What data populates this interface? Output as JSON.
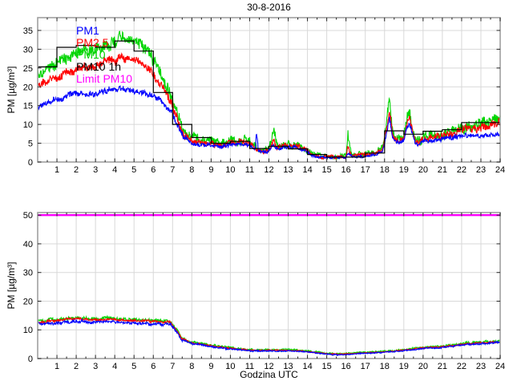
{
  "chart_data": [
    {
      "type": "line",
      "title": "30-8-2016",
      "ylabel": "PM [µg/m³]",
      "xlabel": "",
      "xlim": [
        0,
        24
      ],
      "ylim": [
        0,
        38.4
      ],
      "xticks": [
        1,
        2,
        3,
        4,
        5,
        6,
        7,
        8,
        9,
        10,
        11,
        12,
        13,
        14,
        15,
        16,
        17,
        18,
        19,
        20,
        21,
        22,
        23,
        24
      ],
      "yticks": [
        0,
        5,
        10,
        15,
        20,
        25,
        30,
        35
      ],
      "grid": true,
      "legend_position": "top-left-inside",
      "legend": [
        {
          "label": "PM1",
          "color": "#0000ff"
        },
        {
          "label": "PM2.5",
          "color": "#ff0000"
        },
        {
          "label": "PM10",
          "color": "#00d500"
        },
        {
          "label": "PM10 1h",
          "color": "#000000"
        },
        {
          "label": "Limit PM10",
          "color": "#ff00ff"
        }
      ],
      "series": [
        {
          "name": "PM10",
          "color": "#00d500",
          "noise": 1.4,
          "x": [
            0,
            0.5,
            1,
            1.5,
            2,
            2.5,
            3,
            3.5,
            4,
            4.3,
            4.6,
            5,
            5.5,
            6,
            6.3,
            6.7,
            7,
            7.3,
            7.6,
            8,
            8.5,
            9,
            9.5,
            10,
            10.5,
            11,
            11.3,
            11.6,
            12,
            12.25,
            12.4,
            13,
            13.5,
            14,
            14.3,
            15,
            15.5,
            16,
            16.1,
            16.3,
            17,
            17.5,
            17.9,
            18.1,
            18.25,
            18.4,
            18.6,
            18.8,
            19,
            19.15,
            19.3,
            19.45,
            19.6,
            19.8,
            20,
            20.5,
            21,
            21.5,
            22,
            22.3,
            22.6,
            23,
            23.3,
            23.6,
            24
          ],
          "y": [
            24,
            25,
            26.5,
            27.5,
            29,
            29.5,
            30,
            31,
            32,
            33.5,
            33,
            32.5,
            30.5,
            27,
            24,
            20,
            17,
            12,
            8,
            6.5,
            5.5,
            5.5,
            5,
            5.5,
            6,
            5.5,
            4,
            3,
            3.5,
            9,
            4.5,
            4.5,
            4.5,
            3.5,
            2,
            1.5,
            1.5,
            1.5,
            8,
            2,
            2,
            2.5,
            4,
            10,
            16,
            9,
            6,
            6.5,
            7,
            11,
            13.5,
            9,
            6,
            5.5,
            6.5,
            7,
            7.5,
            8.5,
            9,
            10,
            9.5,
            10,
            11,
            11.5,
            12
          ]
        },
        {
          "name": "PM2.5",
          "color": "#ff0000",
          "noise": 1.0,
          "x": [
            0,
            0.5,
            1,
            1.5,
            2,
            2.5,
            3,
            3.5,
            4,
            4.3,
            4.6,
            5,
            5.5,
            6,
            6.3,
            6.7,
            7,
            7.3,
            7.6,
            8,
            8.5,
            9,
            9.5,
            10,
            10.5,
            11,
            11.3,
            11.6,
            12,
            12.25,
            12.4,
            13,
            13.5,
            14,
            14.3,
            15,
            15.5,
            16,
            16.1,
            16.3,
            17,
            17.5,
            17.9,
            18.1,
            18.25,
            18.4,
            18.6,
            18.8,
            19,
            19.15,
            19.3,
            19.45,
            19.6,
            19.8,
            20,
            20.5,
            21,
            21.5,
            22,
            22.3,
            22.6,
            23,
            23.3,
            23.6,
            24
          ],
          "y": [
            20.5,
            21.5,
            22.5,
            23.5,
            24.5,
            25,
            25.5,
            26.5,
            27,
            28,
            27.8,
            27.5,
            26,
            23.5,
            21,
            18,
            15,
            10.5,
            7,
            5.5,
            5,
            5,
            4.5,
            5,
            5.5,
            5,
            3.6,
            2.8,
            3.2,
            6,
            4,
            4.2,
            4.2,
            3.2,
            1.8,
            1.3,
            1.3,
            1.3,
            4,
            1.7,
            1.8,
            2.2,
            3.5,
            9,
            14,
            8,
            5.5,
            6,
            6.5,
            10,
            12,
            8,
            5.5,
            5,
            6,
            6.5,
            7,
            7.5,
            8.5,
            9,
            8.8,
            9,
            9.8,
            10.2,
            10.5
          ]
        },
        {
          "name": "PM1",
          "color": "#0000ff",
          "noise": 0.7,
          "x": [
            0,
            0.5,
            1,
            1.5,
            2,
            2.5,
            3,
            3.5,
            4,
            4.3,
            4.6,
            5,
            5.5,
            6,
            6.3,
            6.7,
            7,
            7.3,
            7.6,
            8,
            8.5,
            9,
            9.5,
            10,
            10.5,
            11,
            11.3,
            11.35,
            11.45,
            11.6,
            12,
            12.25,
            12.4,
            13,
            13.5,
            14,
            14.3,
            15,
            15.5,
            16,
            16.1,
            16.3,
            17,
            17.5,
            17.9,
            18.1,
            18.25,
            18.4,
            18.6,
            18.8,
            19,
            19.15,
            19.3,
            19.45,
            19.6,
            19.8,
            20,
            20.5,
            21,
            21.5,
            22,
            22.3,
            22.6,
            23,
            23.3,
            23.6,
            24
          ],
          "y": [
            15,
            16,
            16.5,
            17.5,
            18.5,
            18,
            18,
            19,
            19.5,
            19.5,
            19.5,
            19,
            18.5,
            17.5,
            16.5,
            14.5,
            13,
            9,
            6.5,
            5,
            4.5,
            4.5,
            4,
            4.5,
            5,
            4.5,
            3.3,
            8.5,
            3,
            2.5,
            3,
            4.5,
            3.6,
            3.8,
            3.8,
            2.8,
            1.5,
            1.1,
            1.1,
            1.1,
            2.5,
            1.4,
            1.5,
            1.9,
            3,
            7.5,
            12,
            7,
            5,
            5.5,
            6,
            9,
            10.5,
            7,
            5,
            4.5,
            5.5,
            5.8,
            6,
            6.5,
            7,
            7.2,
            7,
            7,
            7.3,
            7.5,
            7.5
          ]
        }
      ],
      "step_series": {
        "name": "PM10 1h",
        "color": "#000000",
        "hour_values": [
          25.3,
          30.5,
          31,
          30.5,
          32.2,
          29.5,
          18.5,
          10,
          6.5,
          5,
          5.5,
          3.6,
          4.2,
          3.5,
          2,
          1.3,
          1.3,
          2.4,
          8.3,
          7.4,
          8.2,
          8.6,
          10.5,
          10.5
        ]
      }
    },
    {
      "type": "line",
      "title": "",
      "ylabel": "PM [µg/m³]",
      "xlabel": "Godzina UTC",
      "xlim": [
        0,
        24
      ],
      "ylim": [
        0,
        50.9
      ],
      "xticks": [
        1,
        2,
        3,
        4,
        5,
        6,
        7,
        8,
        9,
        10,
        11,
        12,
        13,
        14,
        15,
        16,
        17,
        18,
        19,
        20,
        21,
        22,
        23,
        24
      ],
      "yticks": [
        0,
        10,
        20,
        30,
        40,
        50
      ],
      "grid": true,
      "series": [
        {
          "name": "PM10",
          "color": "#00d500",
          "noise": 0.5,
          "x": [
            0,
            0.5,
            1,
            1.5,
            2,
            2.5,
            3,
            3.5,
            4,
            4.5,
            5,
            5.5,
            6,
            6.5,
            6.9,
            7.2,
            7.5,
            8,
            8.5,
            9,
            9.5,
            10,
            10.5,
            11,
            11.5,
            12,
            12.5,
            13,
            13.5,
            14,
            14.5,
            15,
            15.5,
            16,
            16.5,
            17,
            17.5,
            18,
            18.5,
            19,
            19.5,
            20,
            20.5,
            21,
            21.5,
            22,
            22.5,
            23,
            23.5,
            24
          ],
          "y": [
            13.2,
            13.4,
            13.6,
            14,
            14.3,
            14.1,
            13.8,
            14,
            14.2,
            13.8,
            13.5,
            13.6,
            13.3,
            13.2,
            13,
            10,
            7,
            5.7,
            5.2,
            4.6,
            4.2,
            3.8,
            3.4,
            3.1,
            3,
            3.1,
            3,
            3.1,
            2.9,
            2.6,
            2.3,
            1.9,
            1.7,
            1.8,
            2,
            2.2,
            2.3,
            2.5,
            2.8,
            3.2,
            3.5,
            3.9,
            4.1,
            4.3,
            4.6,
            5.2,
            5.5,
            5.7,
            5.9,
            6
          ]
        },
        {
          "name": "PM2.5",
          "color": "#ff0000",
          "noise": 0.35,
          "x": [
            0,
            0.5,
            1,
            1.5,
            2,
            2.5,
            3,
            3.5,
            4,
            4.5,
            5,
            5.5,
            6,
            6.5,
            6.9,
            7.2,
            7.5,
            8,
            8.5,
            9,
            9.5,
            10,
            10.5,
            11,
            11.5,
            12,
            12.5,
            13,
            13.5,
            14,
            14.5,
            15,
            15.5,
            16,
            16.5,
            17,
            17.5,
            18,
            18.5,
            19,
            19.5,
            20,
            20.5,
            21,
            21.5,
            22,
            22.5,
            23,
            23.5,
            24
          ],
          "y": [
            12.8,
            13,
            13.2,
            13.6,
            13.9,
            13.7,
            13.4,
            13.6,
            13.8,
            13.4,
            13.1,
            13.2,
            12.9,
            12.8,
            12.6,
            9.7,
            6.8,
            5.5,
            5,
            4.4,
            4,
            3.6,
            3.2,
            2.9,
            2.8,
            2.9,
            2.8,
            2.9,
            2.7,
            2.4,
            2.1,
            1.7,
            1.5,
            1.6,
            1.8,
            2,
            2.1,
            2.3,
            2.6,
            3,
            3.3,
            3.7,
            3.9,
            4.1,
            4.4,
            5,
            5.3,
            5.5,
            5.7,
            5.8
          ]
        },
        {
          "name": "PM1",
          "color": "#0000ff",
          "noise": 0.4,
          "x": [
            0,
            0.5,
            1,
            1.5,
            2,
            2.5,
            3,
            3.5,
            4,
            4.5,
            5,
            5.5,
            6,
            6.5,
            6.9,
            7.2,
            7.5,
            8,
            8.5,
            9,
            9.5,
            10,
            10.5,
            11,
            11.5,
            12,
            12.5,
            13,
            13.5,
            14,
            14.5,
            15,
            15.5,
            16,
            16.5,
            17,
            17.5,
            18,
            18.5,
            19,
            19.5,
            20,
            20.5,
            21,
            21.5,
            22,
            22.5,
            23,
            23.5,
            24
          ],
          "y": [
            12,
            12.2,
            12.4,
            12.7,
            13,
            12.8,
            12.5,
            12.7,
            12.9,
            12.5,
            12.2,
            12.3,
            12,
            11.9,
            11.7,
            9.2,
            6.4,
            5.2,
            4.7,
            4.1,
            3.7,
            3.3,
            3,
            2.7,
            2.6,
            2.7,
            2.6,
            2.7,
            2.5,
            2.2,
            1.9,
            1.5,
            1.3,
            1.4,
            1.6,
            1.8,
            1.9,
            2.1,
            2.4,
            2.8,
            3.1,
            3.5,
            3.7,
            3.9,
            4.2,
            4.7,
            5,
            5.2,
            5.4,
            5.5
          ]
        }
      ],
      "limit_line": {
        "name": "Limit PM10",
        "color": "#ff00ff",
        "value": 50
      }
    }
  ],
  "colors": {
    "grid": "#d8d8d8",
    "axis_border": "#a0a0a0",
    "tick": "#222222",
    "text": "#000000"
  }
}
